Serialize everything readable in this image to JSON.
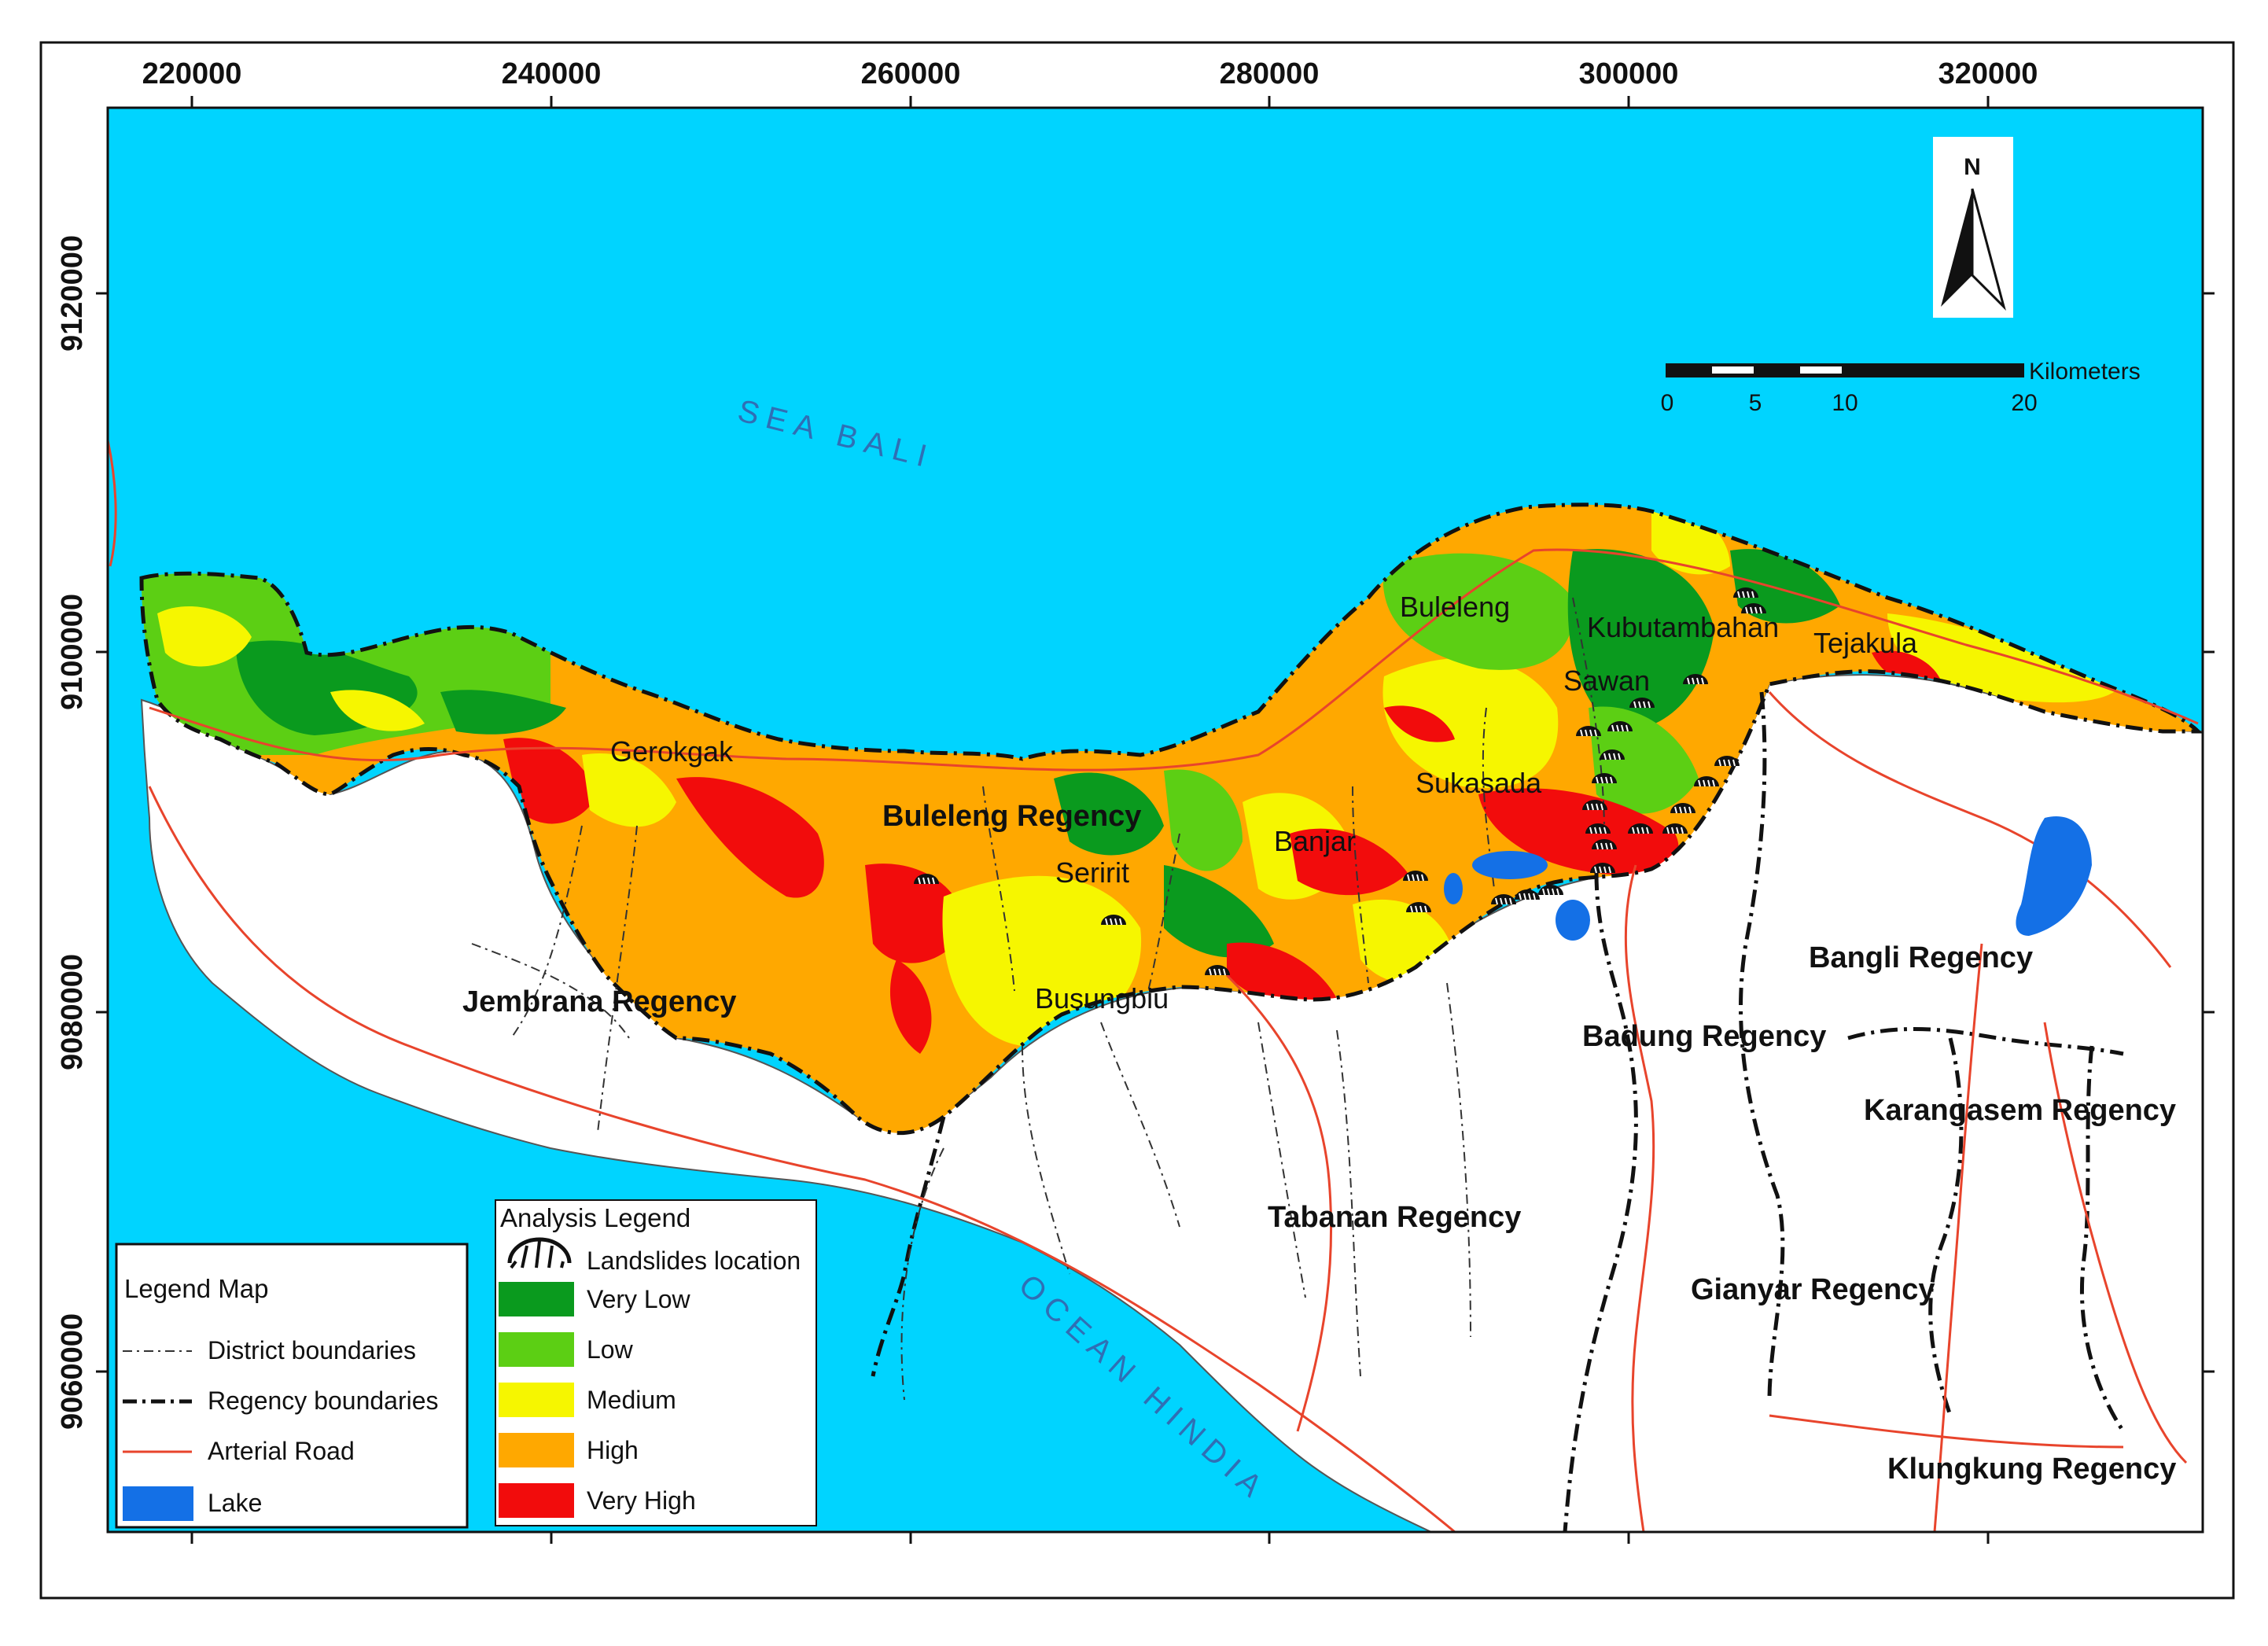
{
  "axes": {
    "x_ticks": [
      "220000",
      "240000",
      "260000",
      "280000",
      "300000",
      "320000"
    ],
    "y_ticks": [
      "9120000",
      "9100000",
      "9080000",
      "9060000"
    ]
  },
  "seas": {
    "north": "SEA BALI",
    "south": "OCEAN HINDIA"
  },
  "districts": [
    "Gerokgak",
    "Seririt",
    "Busungbiu",
    "Banjar",
    "Sukasada",
    "Buleleng",
    "Sawan",
    "Kubutambahan",
    "Tejakula"
  ],
  "regencies": [
    "Buleleng Regency",
    "Jembrana Regency",
    "Tabanan Regency",
    "Badung Regency",
    "Bangli Regency",
    "Karangasem Regency",
    "Gianyar Regency",
    "Klungkung Regency"
  ],
  "north_arrow": {
    "label": "N"
  },
  "scale_bar": {
    "unit": "Kilometers",
    "labels": [
      "0",
      "5",
      "10",
      "20"
    ]
  },
  "legend_map": {
    "title": "Legend Map",
    "items": [
      {
        "label": "District boundaries",
        "symbol": "dash-dot-thin"
      },
      {
        "label": "Regency boundaries",
        "symbol": "dash-dot-thick"
      },
      {
        "label": "Arterial Road",
        "symbol": "red-line"
      },
      {
        "label": "Lake",
        "symbol": "blue-fill"
      }
    ]
  },
  "analysis_legend": {
    "title": "Analysis Legend",
    "landslide_label": "Landslides location",
    "classes": [
      {
        "label": "Very Low",
        "color": "#0a9a1e"
      },
      {
        "label": "Low",
        "color": "#5ccf14"
      },
      {
        "label": "Medium",
        "color": "#f6f600"
      },
      {
        "label": "High",
        "color": "#ffa800"
      },
      {
        "label": "Very High",
        "color": "#f20c0c"
      }
    ]
  },
  "colors": {
    "sea": "#00d4ff",
    "land": "#ffffff",
    "road": "#e8442c",
    "lake": "#1470e6"
  }
}
